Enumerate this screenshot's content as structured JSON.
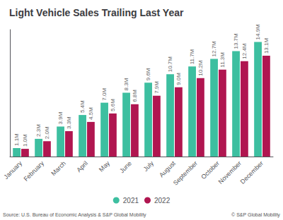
{
  "chart_data": {
    "type": "bar",
    "title": "Light Vehicle Sales Trailing Last Year",
    "categories": [
      "January",
      "February",
      "March",
      "April",
      "May",
      "June",
      "July",
      "August",
      "September",
      "October",
      "November",
      "December"
    ],
    "series": [
      {
        "name": "2021",
        "color": "#3dbfa0",
        "values": [
          1.1,
          2.3,
          3.9,
          5.4,
          7.0,
          8.3,
          9.6,
          10.7,
          11.7,
          12.7,
          13.7,
          14.9
        ],
        "value_labels": [
          "1.1M",
          "2.3M",
          "3.9M",
          "5.4M",
          "7.0M",
          "8.3M",
          "9.6M",
          "10.7M",
          "11.7M",
          "12.7M",
          "13.7M",
          "14.9M"
        ]
      },
      {
        "name": "2022",
        "color": "#b01650",
        "values": [
          1.0,
          2.0,
          3.3,
          4.5,
          5.6,
          6.8,
          7.9,
          9.0,
          10.2,
          11.3,
          12.4,
          13.1
        ],
        "value_labels": [
          "1.0M",
          "2.0M",
          "3.3M",
          "4.5M",
          "5.6M",
          "6.8M",
          "7.9M",
          "9.0M",
          "10.2M",
          "11.3M",
          "12.4M",
          "13.1M"
        ]
      }
    ],
    "ylim": [
      0,
      16.5
    ],
    "grid": false,
    "legend": "bottom",
    "data_labels": true,
    "tick_labels": "x",
    "annotations": [
      "Source: U.S. Bureau of Economic Analysis & S&P Global Mobility",
      "© S&P Global Mobility"
    ]
  }
}
